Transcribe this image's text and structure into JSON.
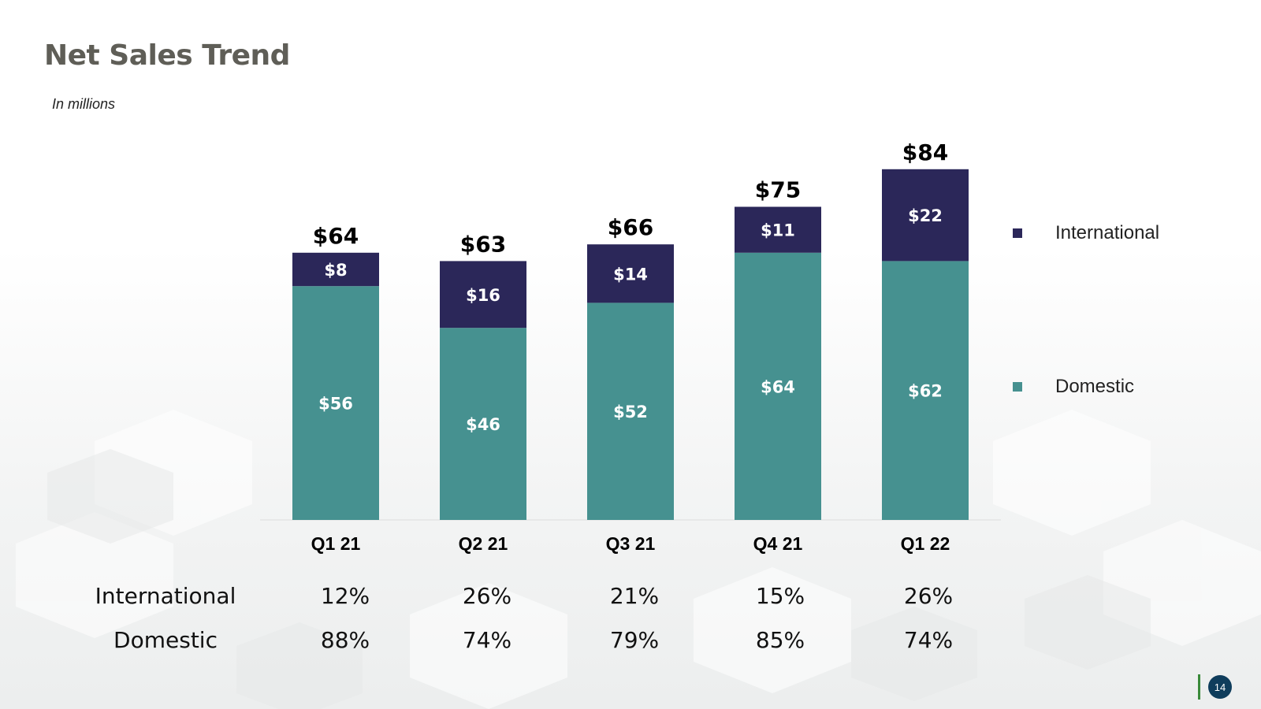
{
  "title": "Net Sales Trend",
  "subtitle": "In millions",
  "page_number": "14",
  "colors": {
    "international": "#2b2759",
    "domestic": "#469190",
    "title": "#5f5e57"
  },
  "chart_data": {
    "type": "bar",
    "stacked": true,
    "categories": [
      "Q1 21",
      "Q2 21",
      "Q3 21",
      "Q4 21",
      "Q1 22"
    ],
    "series": [
      {
        "name": "Domestic",
        "values": [
          56,
          46,
          52,
          64,
          62
        ],
        "labels": [
          "$56",
          "$46",
          "$52",
          "$64",
          "$62"
        ],
        "color": "#469190"
      },
      {
        "name": "International",
        "values": [
          8,
          16,
          14,
          11,
          22
        ],
        "labels": [
          "$8",
          "$16",
          "$14",
          "$11",
          "$22"
        ],
        "color": "#2b2759"
      }
    ],
    "totals": [
      64,
      63,
      66,
      75,
      84
    ],
    "total_labels": [
      "$64",
      "$63",
      "$66",
      "$75",
      "$84"
    ],
    "legend": [
      "International",
      "Domestic"
    ],
    "legend_position": "right",
    "title": "Net Sales Trend",
    "ylabel": "",
    "xlabel": "",
    "grid": false
  },
  "mix_table": {
    "rows": [
      {
        "label": "International",
        "values": [
          "12%",
          "26%",
          "21%",
          "15%",
          "26%"
        ]
      },
      {
        "label": "Domestic",
        "values": [
          "88%",
          "74%",
          "79%",
          "85%",
          "74%"
        ]
      }
    ]
  }
}
